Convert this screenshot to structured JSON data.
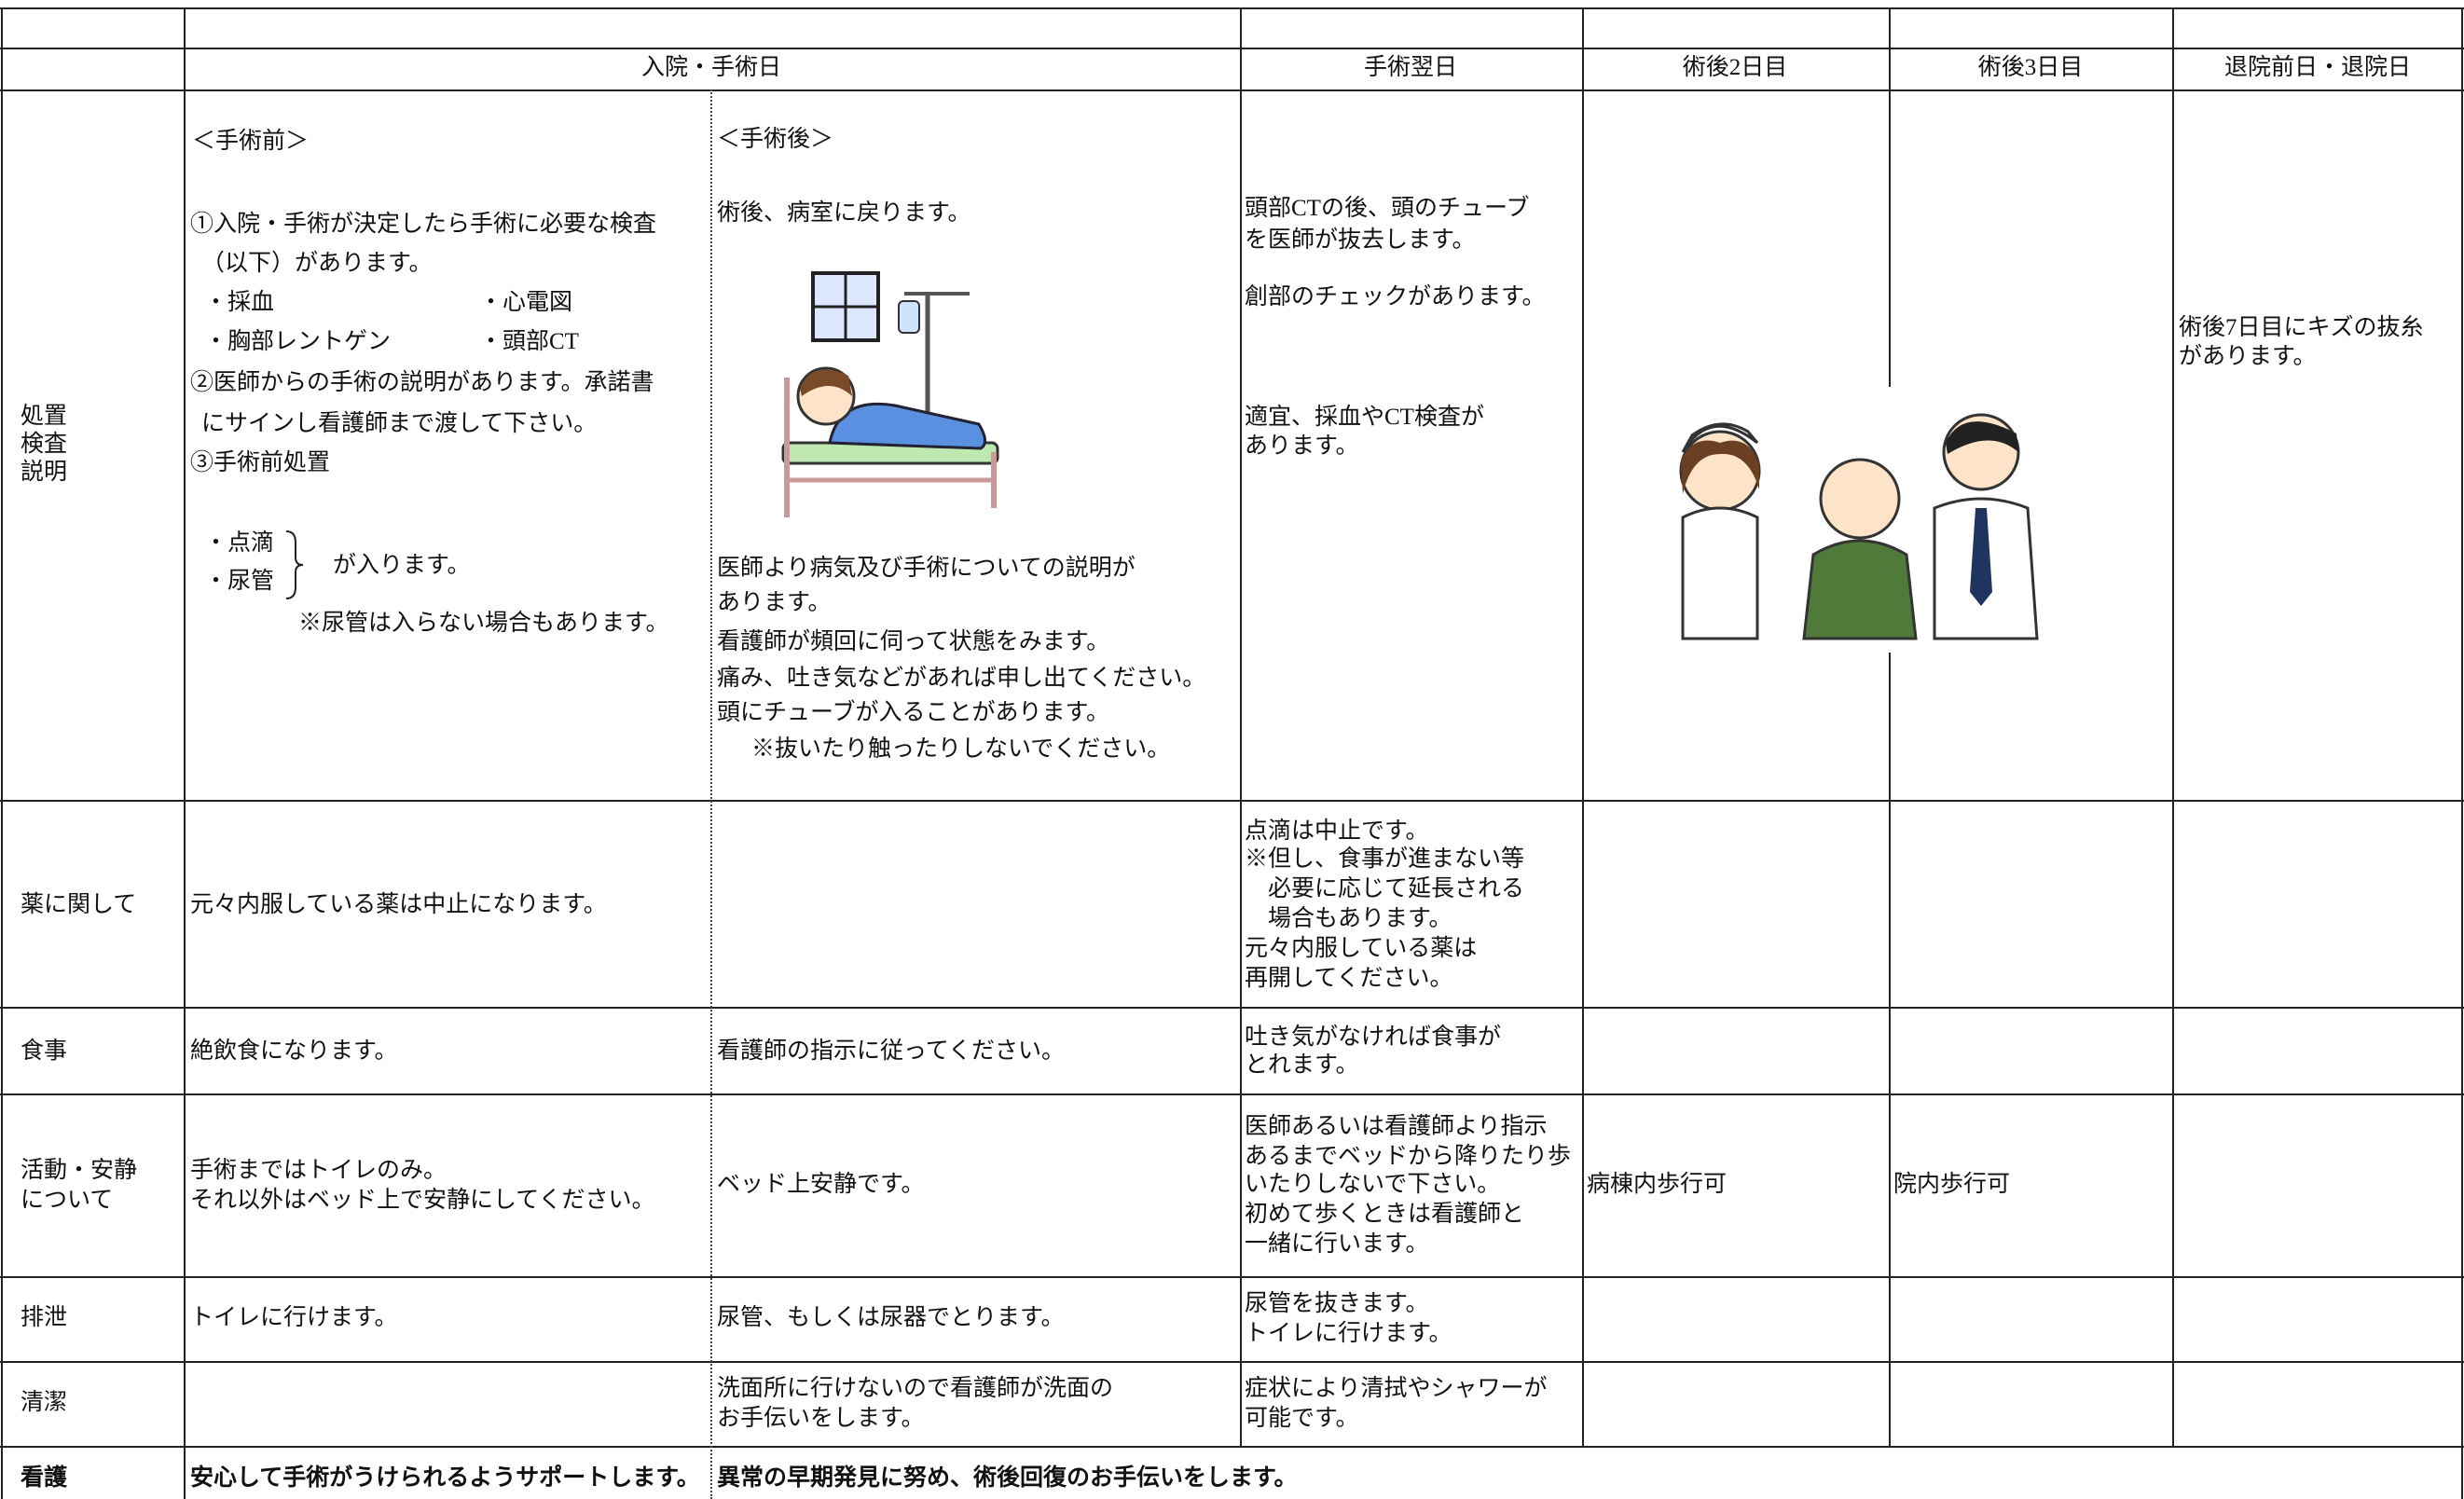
{
  "table": {
    "header": [
      "入院・手術日",
      "手術翌日",
      "術後2日目",
      "術後3日目",
      "退院前日・退院日"
    ],
    "rows": [
      {
        "label": [
          "処置",
          "検査",
          "説明"
        ],
        "pre": [
          "＜手術前＞",
          "①入院・手術が決定したら手術に必要な検査",
          "（以下）があります。",
          "・採血",
          "・心電図",
          "・胸部レントゲン",
          "・頭部CT",
          "②医師からの手術の説明があります。承諾書",
          "にサインし看護師まで渡して下さい。",
          "③手術前処置",
          "・点滴",
          "・尿管",
          "が入ります。",
          "※尿管は入らない場合もあります。"
        ],
        "post": [
          "＜手術後＞",
          "術後、病室に戻ります。",
          "医師より病気及び手術についての説明が",
          "あります。",
          "看護師が頻回に伺って状態をみます。",
          "痛み、吐き気などがあれば申し出てください。",
          "頭にチューブが入ることがあります。",
          "※抜いたり触ったりしないでください。"
        ],
        "day1": [
          "頭部CTの後、頭のチューブ",
          "を医師が抜去します。",
          "創部のチェックがあります。",
          "適宜、採血やCT検査が",
          "あります。"
        ],
        "discharge": [
          "術後7日目にキズの抜糸",
          "があります。"
        ]
      },
      {
        "label": [
          "薬に関して"
        ],
        "pre": [
          "元々内服している薬は中止になります。"
        ],
        "day1": [
          "点滴は中止です。",
          "※但し、食事が進まない等",
          "　必要に応じて延長される",
          "　場合もあります。",
          "元々内服している薬は",
          "再開してください。"
        ]
      },
      {
        "label": [
          "食事"
        ],
        "pre": [
          "絶飲食になります。"
        ],
        "post": [
          "看護師の指示に従ってください。"
        ],
        "day1": [
          "吐き気がなければ食事が",
          "とれます。"
        ]
      },
      {
        "label": [
          "活動・安静",
          "について"
        ],
        "pre": [
          "手術まではトイレのみ。",
          "それ以外はベッド上で安静にしてください。"
        ],
        "post": [
          "ベッド上安静です。"
        ],
        "day1": [
          "医師あるいは看護師より指示",
          "あるまでベッドから降りたり歩",
          "いたりしないで下さい。",
          "初めて歩くときは看護師と",
          "一緒に行います。"
        ],
        "day2": [
          "病棟内歩行可"
        ],
        "day3": [
          "院内歩行可"
        ]
      },
      {
        "label": [
          "排泄"
        ],
        "pre": [
          "トイレに行けます。"
        ],
        "post": [
          "尿管、もしくは尿器でとります。"
        ],
        "day1": [
          "尿管を抜きます。",
          "トイレに行けます。"
        ]
      },
      {
        "label": [
          "清潔"
        ],
        "post": [
          "洗面所に行けないので看護師が洗面の",
          "お手伝いをします。"
        ],
        "day1": [
          "症状により清拭やシャワーが",
          "可能です。"
        ]
      },
      {
        "label": [
          "看護"
        ],
        "pre": [
          "安心して手術がうけられるようサポートします。"
        ],
        "post": [
          "異常の早期発見に努め、術後回復のお手伝いをします。"
        ]
      }
    ]
  }
}
